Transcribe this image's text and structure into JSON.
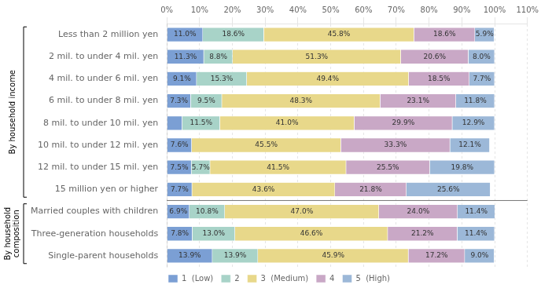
{
  "chart_data": {
    "type": "bar",
    "orientation": "horizontal",
    "stacked": true,
    "categories": [
      "Less than 2 million yen",
      "2 mil. to under 4 mil. yen",
      "4 mil. to under 6 mil. yen",
      "6 mil. to under 8 mil. yen",
      "8 mil. to under 10 mil. yen",
      "10 mil. to under 12 mil. yen",
      "12 mil. to under 15 mil. yen",
      "15 million yen or higher",
      "Married couples with children",
      "Three-generation households",
      "Single-parent households"
    ],
    "series": [
      {
        "name": "1  (Low)",
        "color": "#7b9fd4",
        "values": [
          11.0,
          11.3,
          9.1,
          7.3,
          4.7,
          7.6,
          7.5,
          7.7,
          6.9,
          7.8,
          13.9
        ],
        "value_labels": [
          "11.0%",
          "11.3%",
          "9.1%",
          "7.3%",
          null,
          "7.6%",
          "7.5%",
          "7.7%",
          "6.9%",
          "7.8%",
          "13.9%"
        ]
      },
      {
        "name": "2",
        "color": "#a8d3c8",
        "values": [
          18.6,
          8.8,
          15.3,
          9.5,
          11.5,
          0.0,
          5.7,
          0.0,
          10.8,
          13.0,
          13.9
        ],
        "value_labels": [
          "18.6%",
          "8.8%",
          "15.3%",
          "9.5%",
          "11.5%",
          null,
          "5.7%",
          null,
          "10.8%",
          "13.0%",
          "13.9%"
        ]
      },
      {
        "name": "3  (Medium)",
        "color": "#e8d88a",
        "values": [
          45.8,
          51.3,
          49.4,
          48.3,
          41.0,
          45.5,
          41.5,
          43.6,
          47.0,
          46.6,
          45.9
        ],
        "value_labels": [
          "45.8%",
          "51.3%",
          "49.4%",
          "48.3%",
          "41.0%",
          "45.5%",
          "41.5%",
          "43.6%",
          "47.0%",
          "46.6%",
          "45.9%"
        ]
      },
      {
        "name": "4",
        "color": "#c9a8c6",
        "values": [
          18.6,
          20.6,
          18.5,
          23.1,
          29.9,
          33.3,
          25.5,
          21.8,
          24.0,
          21.2,
          17.2
        ],
        "value_labels": [
          "18.6%",
          "20.6%",
          "18.5%",
          "23.1%",
          "29.9%",
          "33.3%",
          "25.5%",
          "21.8%",
          "24.0%",
          "21.2%",
          "17.2%"
        ]
      },
      {
        "name": "5  (High)",
        "color": "#9cb8d8",
        "values": [
          5.9,
          8.0,
          7.7,
          11.8,
          12.9,
          12.1,
          19.8,
          25.6,
          11.4,
          11.4,
          9.0
        ],
        "value_labels": [
          "5.9%",
          "8.0%",
          "7.7%",
          "11.8%",
          "12.9%",
          "12.1%",
          "19.8%",
          "25.6%",
          "11.4%",
          "11.4%",
          "9.0%"
        ]
      }
    ],
    "xlim": [
      0,
      110
    ],
    "xticks": [
      {
        "value": 0,
        "label": "0%"
      },
      {
        "value": 10,
        "label": "10%"
      },
      {
        "value": 20,
        "label": "20%"
      },
      {
        "value": 30,
        "label": "30%"
      },
      {
        "value": 40,
        "label": "40%"
      },
      {
        "value": 50,
        "label": "50%"
      },
      {
        "value": 60,
        "label": "60%"
      },
      {
        "value": 70,
        "label": "70%"
      },
      {
        "value": 80,
        "label": "80%"
      },
      {
        "value": 90,
        "label": "90%"
      },
      {
        "value": 100,
        "label": "100%"
      },
      {
        "value": 110,
        "label": "110%"
      }
    ],
    "annotations": [
      {
        "text": "By household income",
        "span": [
          "Less than 2 million yen",
          "15 million yen or higher"
        ]
      },
      {
        "text": "By household\ncomposition",
        "span": [
          "Married couples with children",
          "Single-parent households"
        ]
      }
    ],
    "data_labels": true,
    "grid": true,
    "legend": "bottom"
  }
}
